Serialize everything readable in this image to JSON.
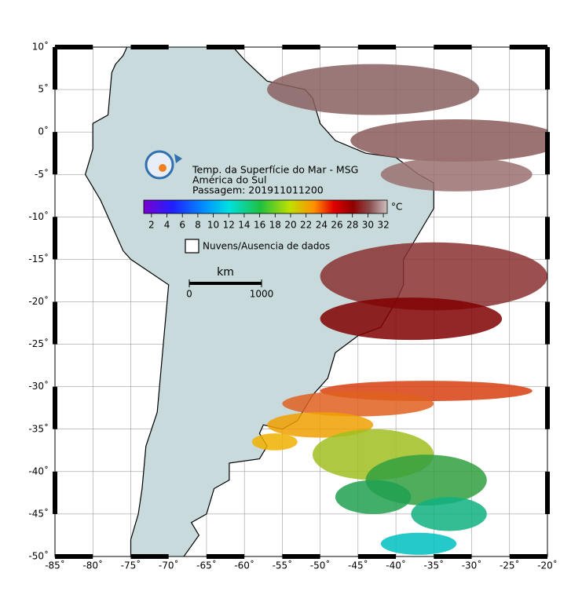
{
  "header": {
    "title": "Temp. da Superfície do Mar - MSG",
    "region": "América do Sul",
    "pass": "Passagem: 201911011200"
  },
  "colorbar": {
    "unit": "°C",
    "range": [
      1,
      32.5
    ],
    "ticks": [
      2,
      4,
      6,
      8,
      10,
      12,
      14,
      16,
      18,
      20,
      22,
      24,
      26,
      28,
      30,
      32
    ]
  },
  "legend": {
    "clouds": "Nuvens/Ausencia de dados"
  },
  "scale_bar": {
    "unit": "km",
    "ticks": [
      0,
      1000
    ]
  },
  "map": {
    "lonlim": [
      -85,
      -20
    ],
    "latlim": [
      -50,
      10
    ],
    "lon_ticks": [
      {
        "value": -85,
        "label": "-85˚"
      },
      {
        "value": -80,
        "label": "-80˚"
      },
      {
        "value": -75,
        "label": "-75˚"
      },
      {
        "value": -70,
        "label": "-70˚"
      },
      {
        "value": -65,
        "label": "-65˚"
      },
      {
        "value": -60,
        "label": "-60˚"
      },
      {
        "value": -55,
        "label": "-55˚"
      },
      {
        "value": -50,
        "label": "-50˚"
      },
      {
        "value": -45,
        "label": "-45˚"
      },
      {
        "value": -40,
        "label": "-40˚"
      },
      {
        "value": -35,
        "label": "-35˚"
      },
      {
        "value": -30,
        "label": "-30˚"
      },
      {
        "value": -25,
        "label": "-25˚"
      },
      {
        "value": -20,
        "label": "-20˚"
      }
    ],
    "lat_ticks": [
      {
        "value": 10,
        "label": "10˚"
      },
      {
        "value": 5,
        "label": "5˚"
      },
      {
        "value": 0,
        "label": "0˚"
      },
      {
        "value": -5,
        "label": "-5˚"
      },
      {
        "value": -10,
        "label": "-10˚"
      },
      {
        "value": -15,
        "label": "-15˚"
      },
      {
        "value": -20,
        "label": "-20˚"
      },
      {
        "value": -25,
        "label": "-25˚"
      },
      {
        "value": -30,
        "label": "-30˚"
      },
      {
        "value": -35,
        "label": "-35˚"
      },
      {
        "value": -40,
        "label": "-40˚"
      },
      {
        "value": -45,
        "label": "-45˚"
      },
      {
        "value": -50,
        "label": "-50˚"
      }
    ]
  }
}
